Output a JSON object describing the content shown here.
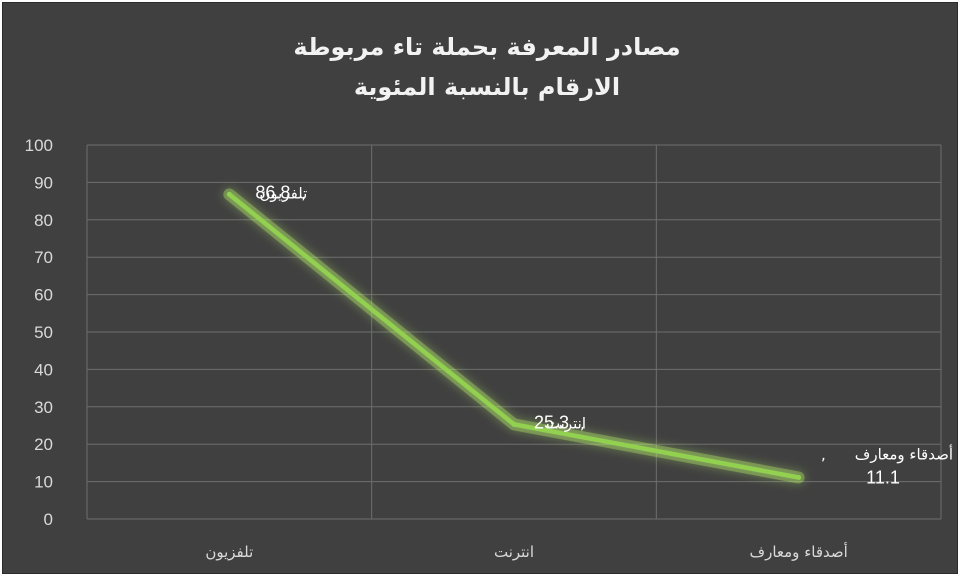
{
  "chart_data": {
    "type": "line",
    "title_line1": "مصادر المعرفة بحملة تاء مربوطة",
    "title_line2": "الارقام بالنسبة المئوية",
    "categories": [
      "تلفزيون",
      "انترنت",
      "أصدقاء ومعارف"
    ],
    "series": [
      {
        "values": [
          86.8,
          25.3,
          11.1
        ]
      }
    ],
    "data_labels": [
      {
        "category": "تلفزيون",
        "separator": ",",
        "value": "86.8"
      },
      {
        "category": "انترنت",
        "separator": ",",
        "value": "25.3"
      },
      {
        "category": "أصدقاء ومعارف",
        "separator": ",",
        "value": "11.1"
      }
    ],
    "y_ticks": [
      "0",
      "10",
      "20",
      "30",
      "40",
      "50",
      "60",
      "70",
      "80",
      "90",
      "100"
    ],
    "ylim": [
      0,
      100
    ],
    "grid": true,
    "legend": "none",
    "colors": {
      "background": "#404040",
      "line": "#92d050",
      "glow": "#b6f06a",
      "grid": "#6e6e6e",
      "text": "#d9d9d9",
      "title": "#f2f2f2"
    }
  }
}
